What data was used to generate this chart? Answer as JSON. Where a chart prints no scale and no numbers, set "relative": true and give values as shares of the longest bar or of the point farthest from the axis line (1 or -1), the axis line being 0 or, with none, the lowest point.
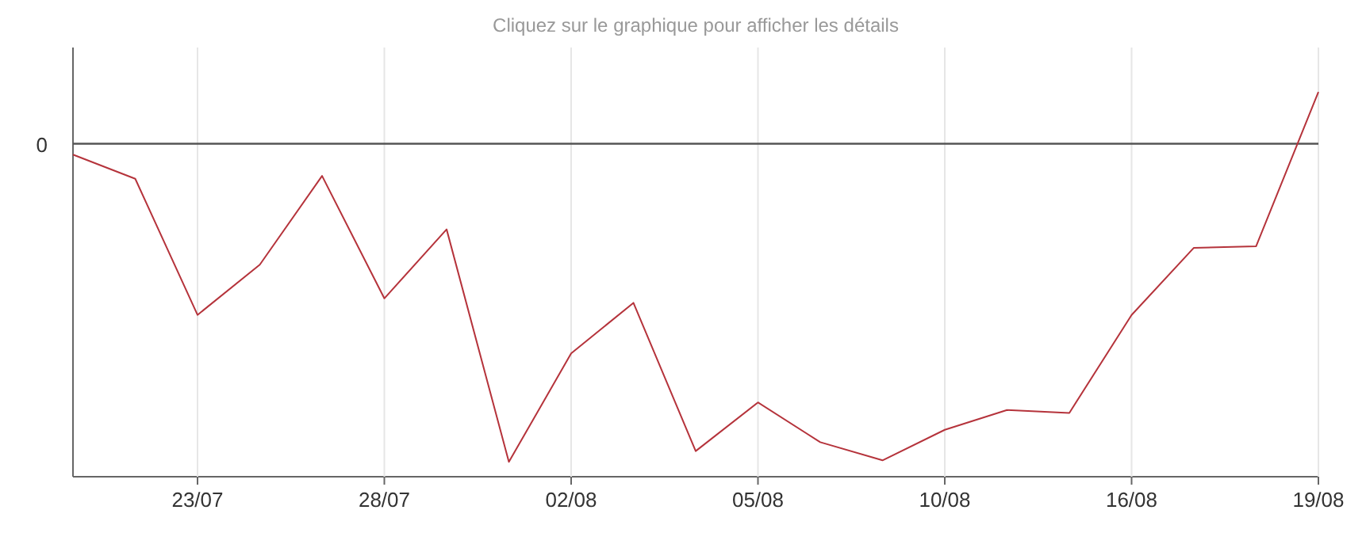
{
  "chart_data": {
    "type": "line",
    "title": "Cliquez sur le graphique pour afficher les détails",
    "relative": true,
    "categories": [
      null,
      null,
      "23/07",
      null,
      null,
      "28/07",
      null,
      null,
      "02/08",
      null,
      null,
      "05/08",
      null,
      null,
      "10/08",
      null,
      null,
      "16/08",
      null,
      null,
      "19/08"
    ],
    "series": [
      {
        "color": "#b5333b",
        "values": [
          -0.034,
          -0.11,
          -0.538,
          -0.38,
          -0.101,
          -0.486,
          -0.269,
          -1,
          -0.659,
          -0.5,
          -0.966,
          -0.813,
          -0.938,
          -0.995,
          -0.899,
          -0.837,
          -0.846,
          -0.538,
          -0.327,
          -0.322,
          0.163
        ]
      }
    ],
    "ref_lines": [
      {
        "axis": "y",
        "value": 0,
        "label": "0",
        "color": "#555555"
      }
    ],
    "grid": "x",
    "marker": "none",
    "line_style": "solid"
  }
}
